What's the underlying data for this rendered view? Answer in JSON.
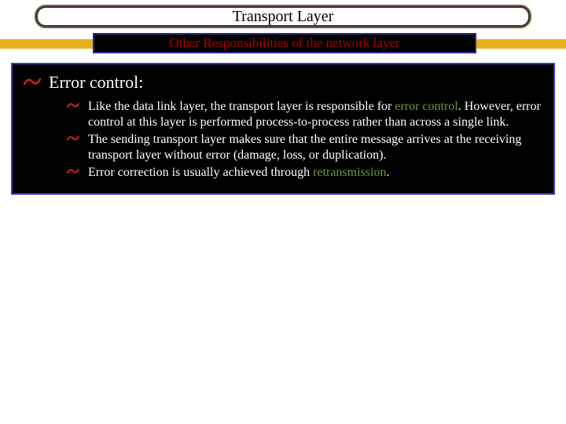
{
  "colors": {
    "title_border": "#4a7a2a",
    "title_fill": "#5a1a4a",
    "stripe": "#e8b020",
    "subtitle_bg": "#000000",
    "subtitle_border": "#2a2a9a",
    "subtitle_text": "#b00000",
    "content_bg": "#000000",
    "content_border": "#3a3ac0",
    "bullet": "#d02020",
    "body_text": "#ffffff",
    "highlight": "#6a9a3a"
  },
  "title": "Transport Layer",
  "subtitle": "Other Responsibilities of the network layer",
  "heading": "Error control:",
  "bullet_glyph": "་0",
  "items": [
    {
      "pre": "Like the data link layer, the transport layer is responsible for ",
      "hl": "error control",
      "post": ". However, error control at this layer is performed process-to-process rather than across a single link."
    },
    {
      "pre": "The sending transport layer makes sure that the entire message arrives at the receiving transport layer without error (damage, loss, or duplication).",
      "hl": "",
      "post": ""
    },
    {
      "pre": "Error correction is usually achieved through ",
      "hl": "retransmission",
      "post": "."
    }
  ]
}
